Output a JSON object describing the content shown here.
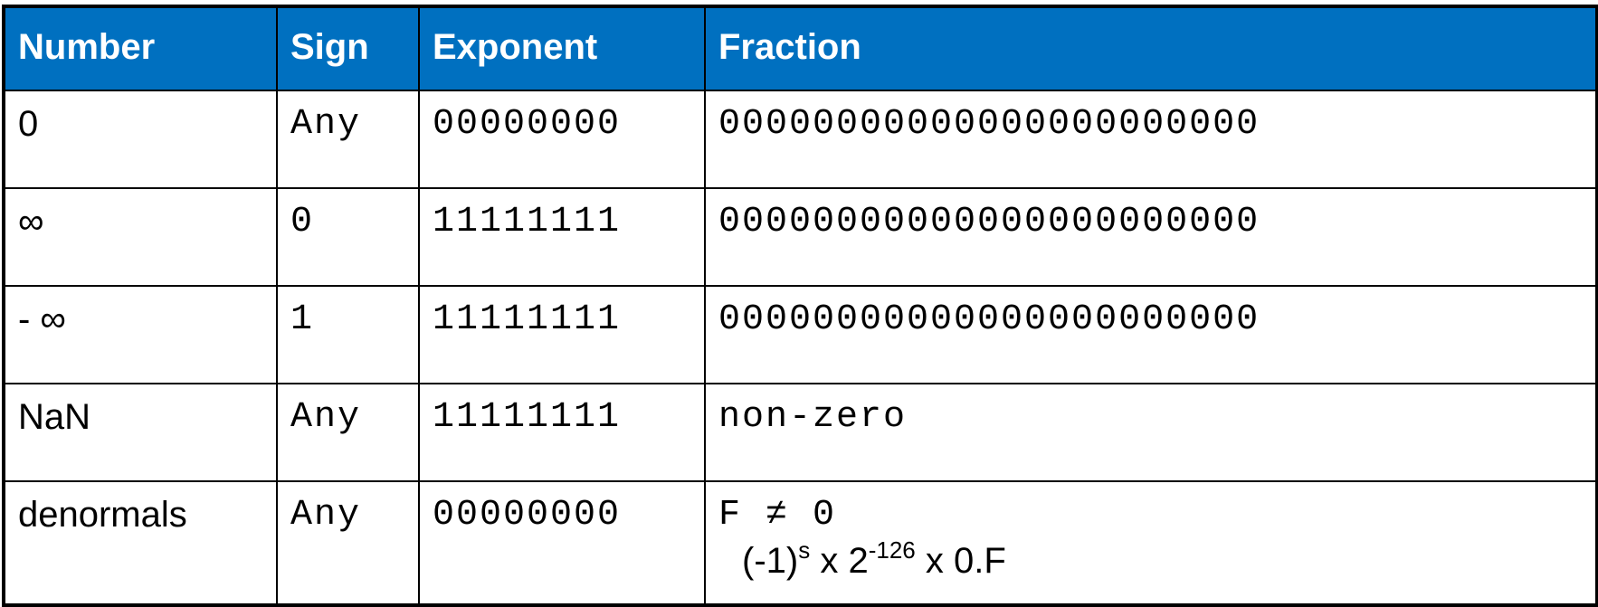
{
  "headers": [
    "Number",
    "Sign",
    "Exponent",
    "Fraction"
  ],
  "rows": [
    {
      "number": "0",
      "sign": "Any",
      "exponent": "00000000",
      "fraction": "00000000000000000000000"
    },
    {
      "number": "∞",
      "sign": "0",
      "exponent": "11111111",
      "fraction": "00000000000000000000000"
    },
    {
      "number": "- ∞",
      "sign": "1",
      "exponent": "11111111",
      "fraction": "00000000000000000000000"
    },
    {
      "number": "NaN",
      "sign": "Any",
      "exponent": "11111111",
      "fraction": "non-zero"
    },
    {
      "number": "denormals",
      "sign": "Any",
      "exponent": "00000000",
      "fraction": "F ≠ 0",
      "formula": {
        "base": "(-1)",
        "sign_exp": "s",
        "mid": " x 2",
        "exp": "-126",
        "tail": " x 0.F"
      }
    }
  ],
  "colors": {
    "header_bg": "#0070c0",
    "header_text": "#ffffff",
    "border": "#000000"
  }
}
